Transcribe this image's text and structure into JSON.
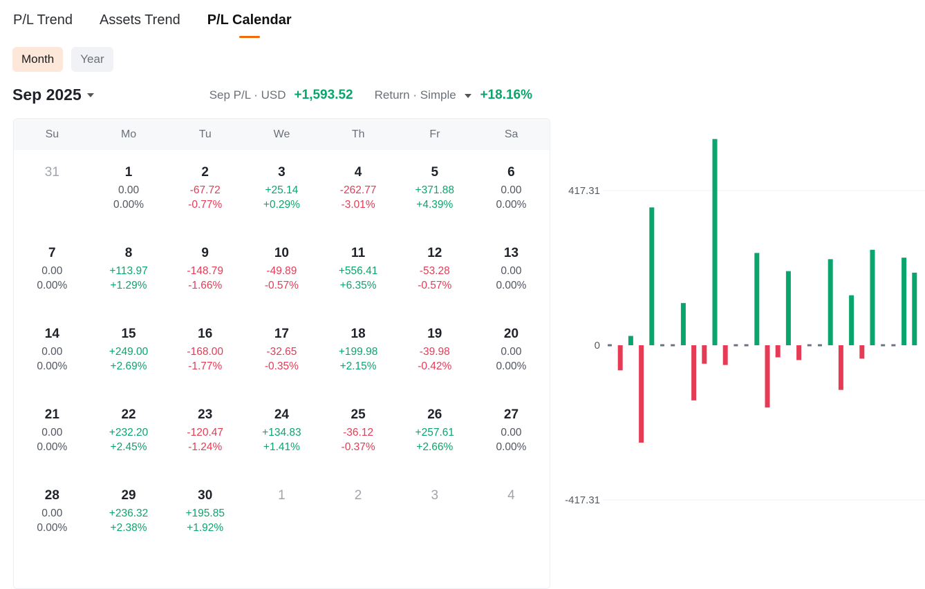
{
  "tabs": [
    {
      "label": "P/L Trend",
      "active": false
    },
    {
      "label": "Assets Trend",
      "active": false
    },
    {
      "label": "P/L Calendar",
      "active": true
    }
  ],
  "period": {
    "month_label": "Month",
    "year_label": "Year",
    "active": "Month"
  },
  "header": {
    "month": "Sep 2025",
    "pl_label": "Sep P/L · USD",
    "pl_value": "+1,593.52",
    "return_label": "Return · Simple",
    "return_value": "+18.16%"
  },
  "weekdays": [
    "Su",
    "Mo",
    "Tu",
    "We",
    "Th",
    "Fr",
    "Sa"
  ],
  "days": [
    {
      "day": "31",
      "muted": true,
      "pl": "",
      "pct": ""
    },
    {
      "day": "1",
      "pl": "0.00",
      "pct": "0.00%"
    },
    {
      "day": "2",
      "pl": "-67.72",
      "pct": "-0.77%"
    },
    {
      "day": "3",
      "pl": "+25.14",
      "pct": "+0.29%"
    },
    {
      "day": "4",
      "pl": "-262.77",
      "pct": "-3.01%"
    },
    {
      "day": "5",
      "pl": "+371.88",
      "pct": "+4.39%"
    },
    {
      "day": "6",
      "pl": "0.00",
      "pct": "0.00%"
    },
    {
      "day": "7",
      "pl": "0.00",
      "pct": "0.00%"
    },
    {
      "day": "8",
      "pl": "+113.97",
      "pct": "+1.29%"
    },
    {
      "day": "9",
      "pl": "-148.79",
      "pct": "-1.66%"
    },
    {
      "day": "10",
      "pl": "-49.89",
      "pct": "-0.57%"
    },
    {
      "day": "11",
      "pl": "+556.41",
      "pct": "+6.35%"
    },
    {
      "day": "12",
      "pl": "-53.28",
      "pct": "-0.57%"
    },
    {
      "day": "13",
      "pl": "0.00",
      "pct": "0.00%"
    },
    {
      "day": "14",
      "pl": "0.00",
      "pct": "0.00%"
    },
    {
      "day": "15",
      "pl": "+249.00",
      "pct": "+2.69%"
    },
    {
      "day": "16",
      "pl": "-168.00",
      "pct": "-1.77%"
    },
    {
      "day": "17",
      "pl": "-32.65",
      "pct": "-0.35%"
    },
    {
      "day": "18",
      "pl": "+199.98",
      "pct": "+2.15%"
    },
    {
      "day": "19",
      "pl": "-39.98",
      "pct": "-0.42%"
    },
    {
      "day": "20",
      "pl": "0.00",
      "pct": "0.00%"
    },
    {
      "day": "21",
      "pl": "0.00",
      "pct": "0.00%"
    },
    {
      "day": "22",
      "pl": "+232.20",
      "pct": "+2.45%"
    },
    {
      "day": "23",
      "pl": "-120.47",
      "pct": "-1.24%"
    },
    {
      "day": "24",
      "pl": "+134.83",
      "pct": "+1.41%"
    },
    {
      "day": "25",
      "pl": "-36.12",
      "pct": "-0.37%"
    },
    {
      "day": "26",
      "pl": "+257.61",
      "pct": "+2.66%"
    },
    {
      "day": "27",
      "pl": "0.00",
      "pct": "0.00%"
    },
    {
      "day": "28",
      "pl": "0.00",
      "pct": "0.00%"
    },
    {
      "day": "29",
      "pl": "+236.32",
      "pct": "+2.38%"
    },
    {
      "day": "30",
      "pl": "+195.85",
      "pct": "+1.92%"
    },
    {
      "day": "1",
      "muted": true,
      "pl": "",
      "pct": ""
    },
    {
      "day": "2",
      "muted": true,
      "pl": "",
      "pct": ""
    },
    {
      "day": "3",
      "muted": true,
      "pl": "",
      "pct": ""
    },
    {
      "day": "4",
      "muted": true,
      "pl": "",
      "pct": ""
    }
  ],
  "colors": {
    "positive": "#0aa56c",
    "negative": "#e63b55",
    "accent": "#f06b0a"
  },
  "chart_data": {
    "type": "bar",
    "y_ticks": [
      "417.31",
      "0",
      "-417.31"
    ],
    "ylim": [
      -417.31,
      417.31
    ],
    "values": [
      0,
      -67.72,
      25.14,
      -262.77,
      371.88,
      0,
      0,
      113.97,
      -148.79,
      -49.89,
      556.41,
      -53.28,
      0,
      0,
      249.0,
      -168.0,
      -32.65,
      199.98,
      -39.98,
      0,
      0,
      232.2,
      -120.47,
      134.83,
      -36.12,
      257.61,
      0,
      0,
      236.32,
      195.85
    ],
    "grid": true,
    "legend": "none"
  }
}
